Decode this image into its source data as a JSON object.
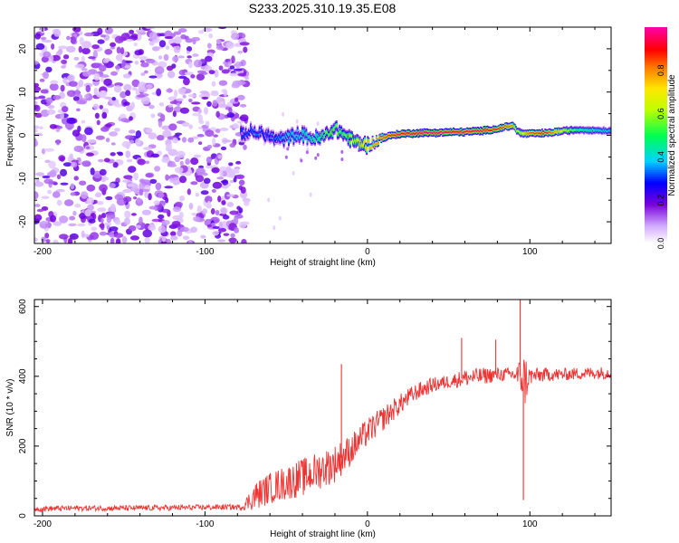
{
  "title": "S233.2025.310.19.35.E08",
  "chart_data": [
    {
      "type": "heatmap",
      "title": "S233.2025.310.19.35.E08",
      "xlabel": "Height of straight line (km)",
      "ylabel": "Frequency (Hz)",
      "xlim": [
        -205,
        150
      ],
      "ylim": [
        -25,
        25
      ],
      "xticks": [
        -200,
        -100,
        0,
        100
      ],
      "yticks": [
        -20,
        -10,
        0,
        10,
        20
      ],
      "noise_region_x": [
        -205,
        -77
      ],
      "ridge": {
        "x": [
          -77,
          -70,
          -62,
          -55,
          -48,
          -42,
          -36,
          -30,
          -25,
          -20,
          -15,
          -10,
          -5,
          0,
          5,
          10,
          15,
          20,
          30,
          40,
          50,
          60,
          70,
          80,
          85,
          90,
          92,
          95,
          100,
          110,
          120,
          130,
          140,
          150
        ],
        "y": [
          0.5,
          0.8,
          0.0,
          -1.0,
          -0.5,
          0.3,
          -0.5,
          -0.8,
          0.2,
          1.5,
          0.3,
          -1.0,
          -2.0,
          -2.2,
          -1.5,
          -0.5,
          0.0,
          0.3,
          0.5,
          0.6,
          0.7,
          0.8,
          1.0,
          1.5,
          2.0,
          2.2,
          1.0,
          0.4,
          0.4,
          0.5,
          1.0,
          1.3,
          1.2,
          1.0
        ],
        "amplitude": [
          0.3,
          0.35,
          0.3,
          0.35,
          0.4,
          0.4,
          0.45,
          0.5,
          0.55,
          0.6,
          0.55,
          0.6,
          0.7,
          0.75,
          0.8,
          0.85,
          0.9,
          0.95,
          0.98,
          0.98,
          0.97,
          0.96,
          0.95,
          0.9,
          0.85,
          0.8,
          0.6,
          0.7,
          0.85,
          0.9,
          0.7,
          0.5,
          0.45,
          0.4
        ]
      },
      "colorbar": {
        "label": "Normalized spectral amplitude",
        "range": [
          0,
          1
        ],
        "ticks": [
          0.0,
          0.2,
          0.4,
          0.6,
          0.8
        ],
        "tick_labels": [
          "0.0",
          "0.2",
          "0.4",
          "0.6",
          "0.8"
        ],
        "colormap": "rainbow (white-violet-blue-cyan-green-yellow-orange-red-magenta)"
      }
    },
    {
      "type": "line",
      "xlabel": "Height of straight line (km)",
      "ylabel": "SNR (10 * v/v)",
      "xlim": [
        -205,
        150
      ],
      "ylim": [
        0,
        620
      ],
      "xticks": [
        -200,
        -100,
        0,
        100
      ],
      "yticks": [
        0,
        200,
        400,
        600
      ],
      "series": [
        {
          "name": "SNR",
          "color": "#ee3333",
          "x": [
            -205,
            -180,
            -150,
            -120,
            -90,
            -77,
            -70,
            -60,
            -50,
            -40,
            -30,
            -20,
            -10,
            0,
            10,
            20,
            30,
            40,
            50,
            60,
            70,
            80,
            90,
            95,
            97,
            100,
            110,
            120,
            130,
            140,
            150
          ],
          "mean": [
            20,
            22,
            22,
            23,
            25,
            25,
            55,
            80,
            95,
            110,
            130,
            150,
            190,
            240,
            280,
            320,
            355,
            375,
            385,
            395,
            400,
            405,
            405,
            400,
            390,
            400,
            405,
            405,
            408,
            410,
            410
          ],
          "noise_amplitude": [
            8,
            8,
            8,
            8,
            8,
            8,
            40,
            45,
            50,
            55,
            55,
            55,
            45,
            40,
            35,
            30,
            25,
            22,
            20,
            25,
            25,
            20,
            20,
            60,
            80,
            25,
            20,
            18,
            18,
            18,
            18
          ]
        }
      ],
      "spikes": [
        {
          "x": -16,
          "y": 435
        },
        {
          "x": 58,
          "y": 510
        },
        {
          "x": 79,
          "y": 505
        },
        {
          "x": 94,
          "y": 620
        },
        {
          "x": 96,
          "y": 45
        }
      ]
    }
  ]
}
